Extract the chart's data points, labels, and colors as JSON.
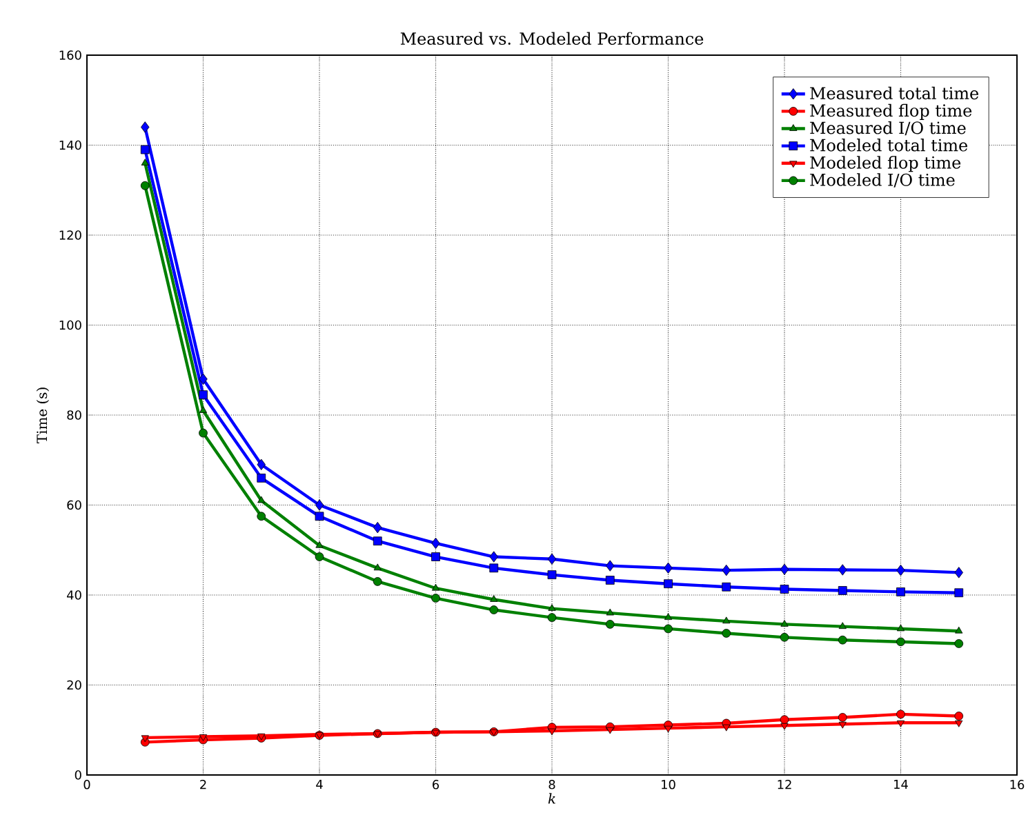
{
  "chart_data": {
    "type": "line",
    "title": "Measured vs. Modeled Performance",
    "xlabel": "k",
    "ylabel": "Time (s)",
    "x": [
      1,
      2,
      3,
      4,
      5,
      6,
      7,
      8,
      9,
      10,
      11,
      12,
      13,
      14,
      15
    ],
    "series": [
      {
        "name": "Measured total time",
        "color": "#0000ff",
        "marker": "diamond",
        "values": [
          144,
          88,
          69,
          60,
          55,
          51.5,
          48.5,
          48,
          46.5,
          46,
          45.5,
          45.7,
          45.6,
          45.5,
          45
        ]
      },
      {
        "name": "Measured flop time",
        "color": "#ff0000",
        "marker": "circle",
        "values": [
          7.3,
          7.8,
          8.2,
          8.8,
          9.2,
          9.5,
          9.6,
          10.6,
          10.7,
          11.1,
          11.5,
          12.3,
          12.8,
          13.5,
          13.1
        ]
      },
      {
        "name": "Measured I/O time",
        "color": "#008000",
        "marker": "triangle",
        "values": [
          136,
          81,
          61,
          51,
          46,
          41.5,
          39,
          37,
          36,
          35,
          34.2,
          33.5,
          33,
          32.5,
          32
        ]
      },
      {
        "name": "Modeled total time",
        "color": "#0000ff",
        "marker": "square",
        "values": [
          139,
          84.5,
          66,
          57.5,
          52,
          48.5,
          46,
          44.5,
          43.3,
          42.5,
          41.8,
          41.3,
          41,
          40.7,
          40.5
        ]
      },
      {
        "name": "Modeled flop time",
        "color": "#ff0000",
        "marker": "triangle-down",
        "values": [
          8.3,
          8.5,
          8.7,
          9.0,
          9.2,
          9.5,
          9.6,
          9.8,
          10.1,
          10.4,
          10.7,
          11.0,
          11.3,
          11.6,
          11.6
        ]
      },
      {
        "name": "Modeled I/O time",
        "color": "#008000",
        "marker": "circle",
        "values": [
          131,
          76,
          57.5,
          48.5,
          43,
          39.3,
          36.7,
          35,
          33.5,
          32.5,
          31.5,
          30.6,
          30,
          29.6,
          29.2
        ]
      }
    ],
    "xlim": [
      0,
      16
    ],
    "ylim": [
      0,
      160
    ],
    "xticks": [
      0,
      2,
      4,
      6,
      8,
      10,
      12,
      14,
      16
    ],
    "yticks": [
      0,
      20,
      40,
      60,
      80,
      100,
      120,
      140,
      160
    ],
    "grid": true,
    "legend": "top right",
    "line_style": "solid"
  }
}
